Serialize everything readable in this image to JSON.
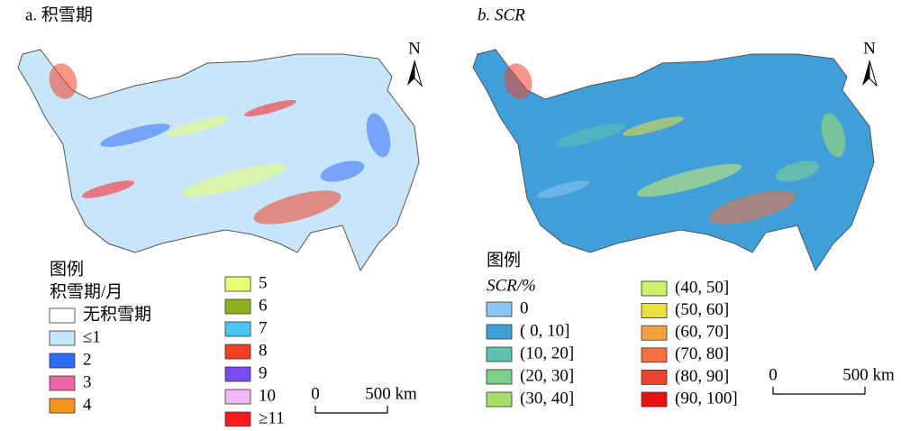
{
  "panels": [
    {
      "label": "a. 积雪期",
      "label_italic": false,
      "north": "N",
      "legend_title": "图例",
      "legend_subtitle": "积雪期/月",
      "subtitle_italic": false,
      "base_color": "#c8e6fa",
      "legend_items": [
        {
          "label": "无积雪期",
          "color": "#ffffff"
        },
        {
          "label": "≤1",
          "color": "#c6e6fa"
        },
        {
          "label": "2",
          "color": "#2f6cf5"
        },
        {
          "label": "3",
          "color": "#f064a8"
        },
        {
          "label": "4",
          "color": "#f7941d"
        },
        {
          "label": "5",
          "color": "#eaff70"
        },
        {
          "label": "6",
          "color": "#8db01d"
        },
        {
          "label": "7",
          "color": "#45c8f5"
        },
        {
          "label": "8",
          "color": "#f04020"
        },
        {
          "label": "9",
          "color": "#7a4af5"
        },
        {
          "label": "10",
          "color": "#f0b8f5"
        },
        {
          "label": "≥11",
          "color": "#ff1a1a"
        }
      ],
      "scale_bar": {
        "start": "0",
        "end": "500 km"
      }
    },
    {
      "label": "b. SCR",
      "label_italic": true,
      "north": "N",
      "legend_title": "图例",
      "legend_subtitle": "SCR/%",
      "subtitle_italic": true,
      "base_color": "#3f9fd8",
      "legend_items": [
        {
          "label": "0",
          "color": "#8cc4f5"
        },
        {
          "label": "( 0, 10]",
          "color": "#3f9fd8"
        },
        {
          "label": "(10, 20]",
          "color": "#5ec2b0"
        },
        {
          "label": "(20, 30]",
          "color": "#7ecf8a"
        },
        {
          "label": "(30, 40]",
          "color": "#a6e06a"
        },
        {
          "label": "(40, 50]",
          "color": "#d0f06a"
        },
        {
          "label": "(50, 60]",
          "color": "#e8e040"
        },
        {
          "label": "(60, 70]",
          "color": "#f5a040"
        },
        {
          "label": "(70, 80]",
          "color": "#f57040"
        },
        {
          "label": "(80, 90]",
          "color": "#f04030"
        },
        {
          "label": "(90, 100]",
          "color": "#e81010"
        }
      ],
      "scale_bar": {
        "start": "0",
        "end": "500 km"
      }
    }
  ]
}
